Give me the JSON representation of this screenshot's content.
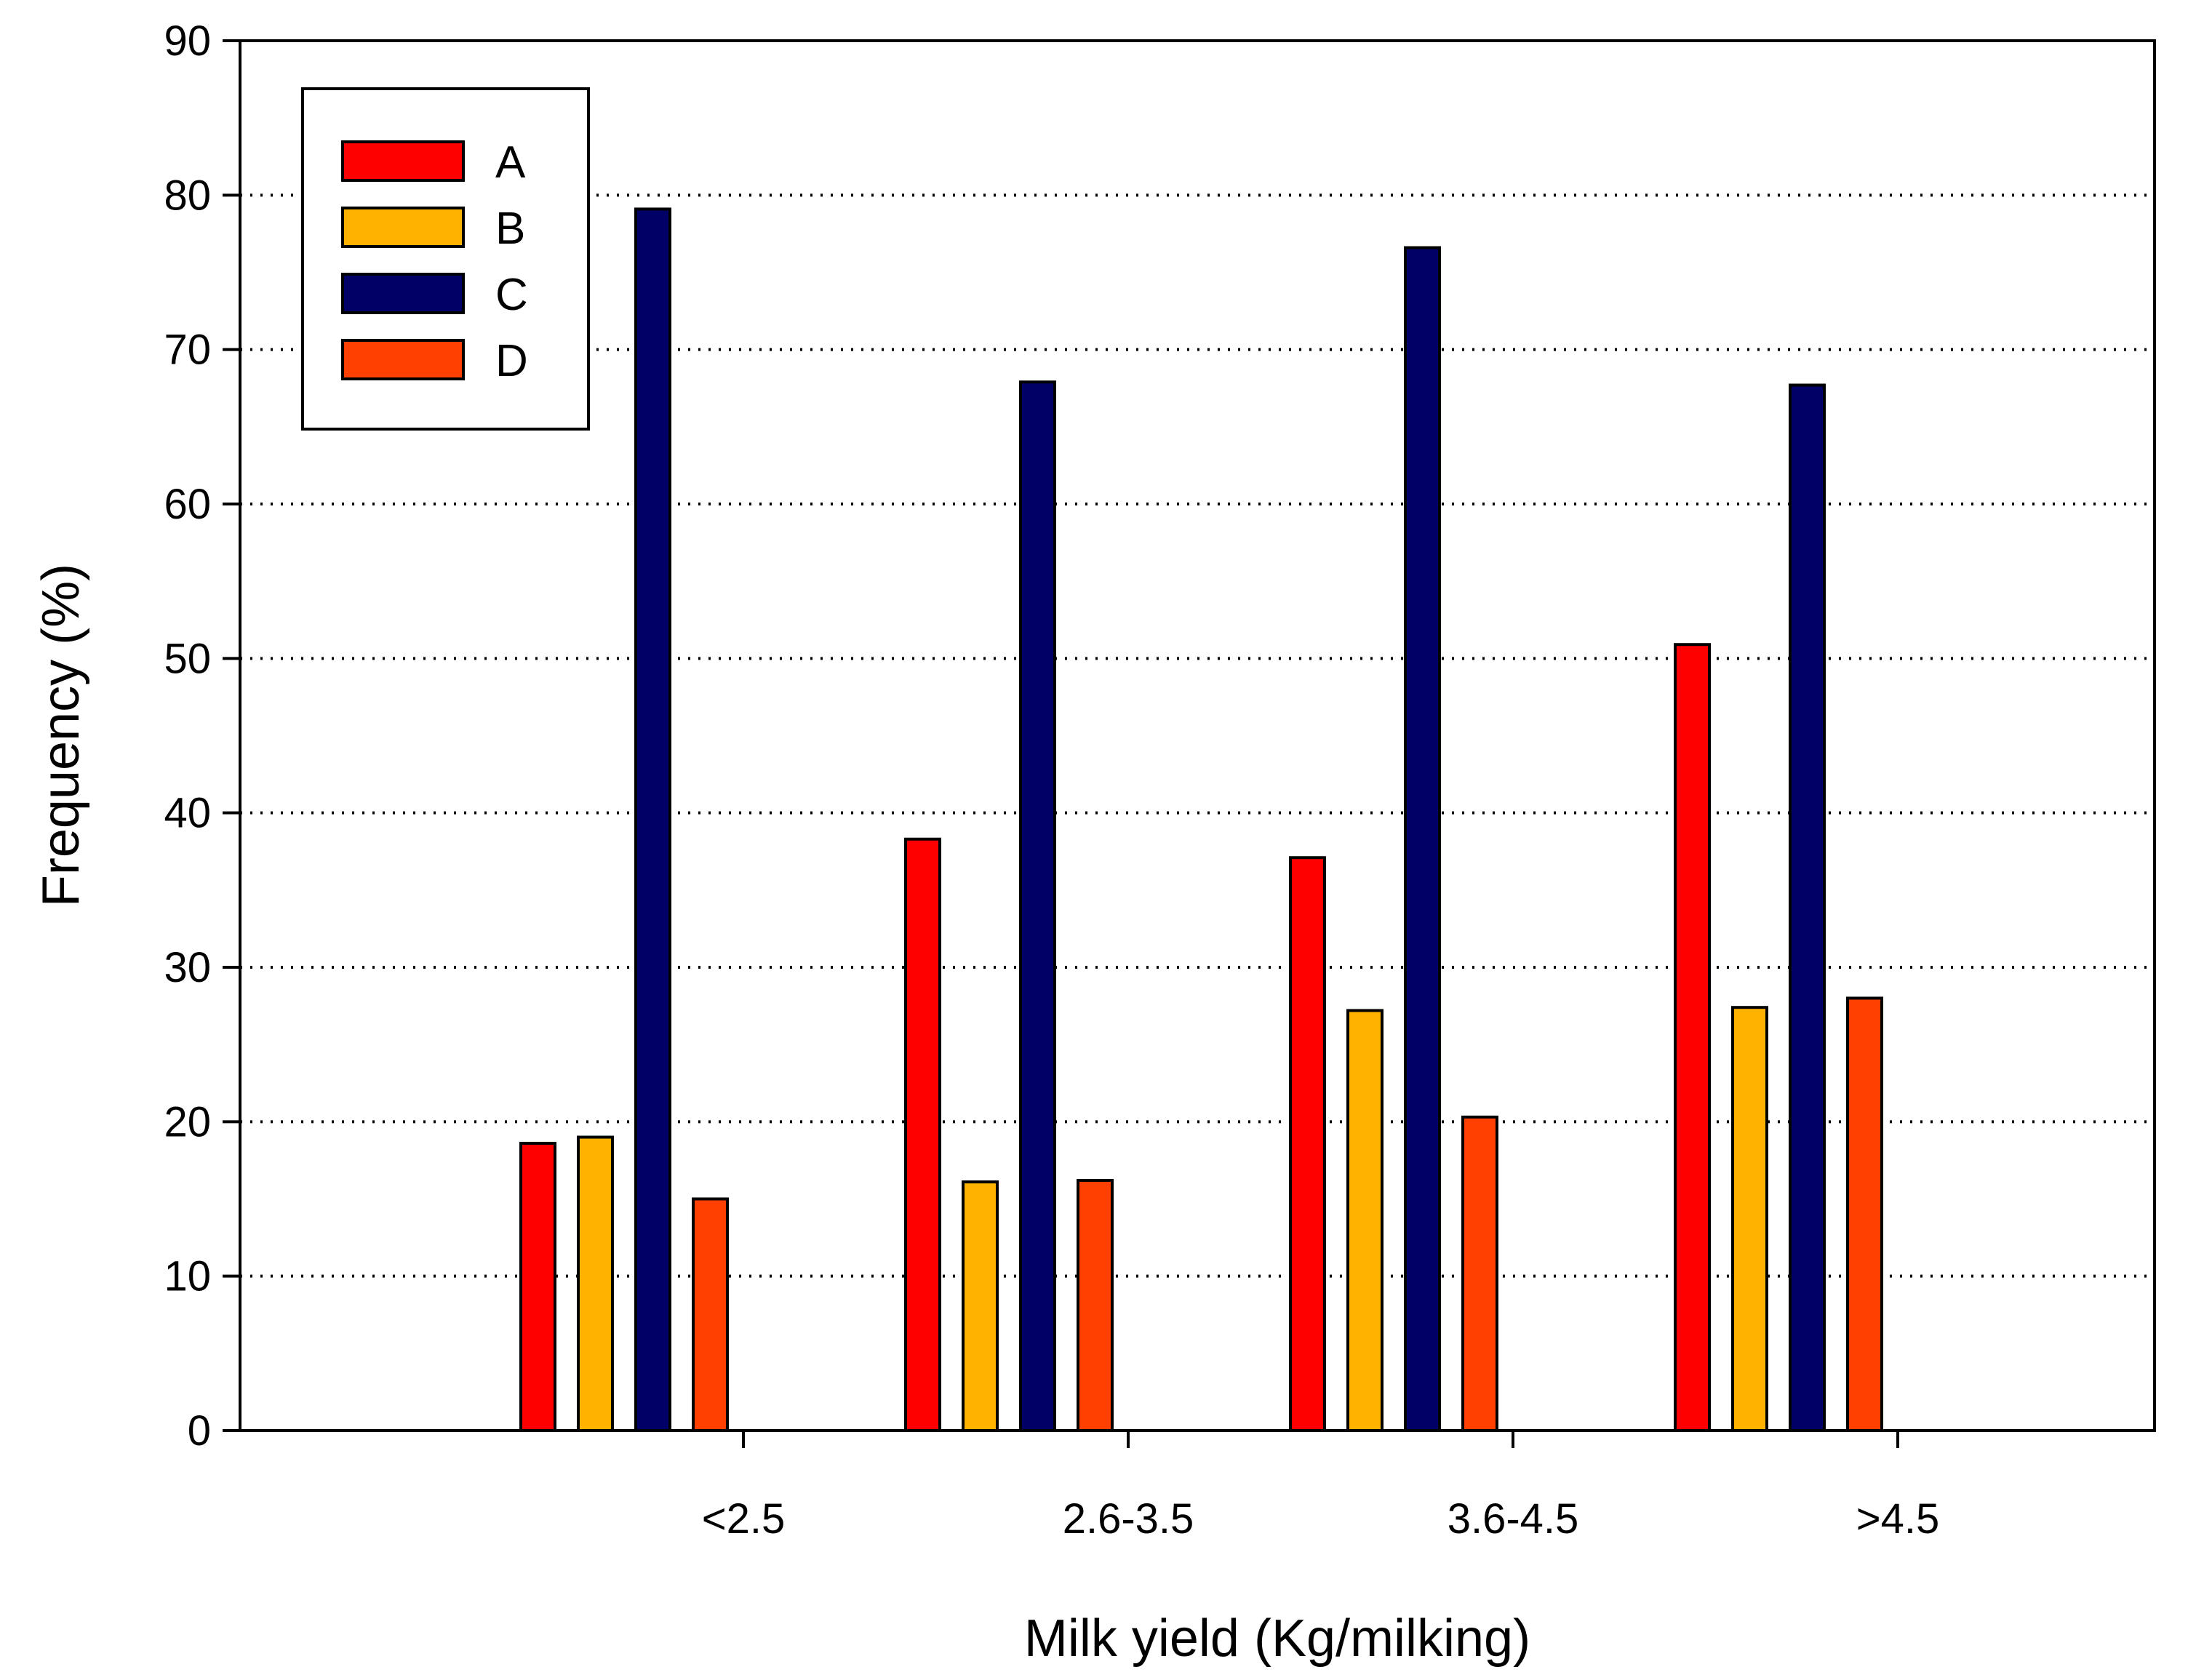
{
  "chart_data": {
    "type": "bar",
    "title": "",
    "xlabel": "Milk yield (Kg/milking)",
    "ylabel": "Frequency (%)",
    "ylim": [
      0,
      90
    ],
    "yticks": [
      "0",
      "10",
      "20",
      "30",
      "40",
      "50",
      "60",
      "70",
      "80",
      "90"
    ],
    "categories": [
      "<2.5",
      "2.6-3.5",
      "3.6-4.5",
      ">4.5"
    ],
    "grid": "horizontal dotted",
    "legend_position": "top-left",
    "series": [
      {
        "name": "A",
        "color": "#ff0000",
        "values": [
          18.6,
          38.3,
          37.1,
          50.9
        ]
      },
      {
        "name": "B",
        "color": "#ffb300",
        "values": [
          19.0,
          16.1,
          27.2,
          27.4
        ]
      },
      {
        "name": "C",
        "color": "#000066",
        "values": [
          79.1,
          67.9,
          76.6,
          67.7
        ]
      },
      {
        "name": "D",
        "color": "#ff4000",
        "values": [
          15.0,
          16.2,
          20.3,
          28.0
        ]
      }
    ]
  }
}
